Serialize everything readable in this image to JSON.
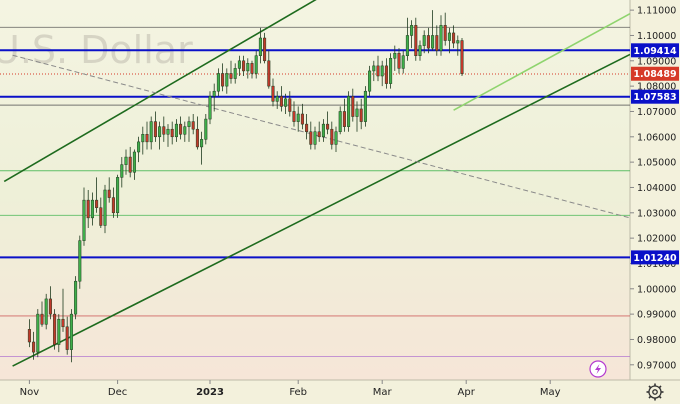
{
  "chart_data": {
    "type": "candlestick",
    "watermark": "U.S. Dollar",
    "y_axis": {
      "range": [
        0.964,
        1.114
      ],
      "ticks": [
        "1.11000",
        "1.10000",
        "1.09000",
        "1.08000",
        "1.07000",
        "1.06000",
        "1.05000",
        "1.04000",
        "1.03000",
        "1.02000",
        "1.01000",
        "1.00000",
        "0.99000",
        "0.98000",
        "0.97000"
      ]
    },
    "x_axis": {
      "labels": [
        {
          "text": "Nov",
          "x": 0
        },
        {
          "text": "Dec",
          "x": 21
        },
        {
          "text": "2023",
          "x": 43,
          "bold": true
        },
        {
          "text": "Feb",
          "x": 64
        },
        {
          "text": "Mar",
          "x": 84
        },
        {
          "text": "Apr",
          "x": 104
        },
        {
          "text": "May",
          "x": 124
        }
      ],
      "range": [
        -7,
        143
      ]
    },
    "price_labels": [
      {
        "text": "1.09414",
        "value": 1.09414,
        "color": "#0a10c8"
      },
      {
        "text": "1.08489",
        "value": 1.08489,
        "color": "#d63a28"
      },
      {
        "text": "1.07583",
        "value": 1.07583,
        "color": "#0a10c8"
      },
      {
        "text": "1.01240",
        "value": 1.0124,
        "color": "#0a10c8"
      }
    ],
    "horizontal_lines": [
      {
        "value": 1.09414,
        "color": "#0a10c8",
        "kind": "level"
      },
      {
        "value": 1.07583,
        "color": "#0a10c8",
        "kind": "level"
      },
      {
        "value": 1.0124,
        "color": "#0a10c8",
        "kind": "level"
      },
      {
        "value": 1.1032,
        "color": "#555555",
        "kind": "thin"
      },
      {
        "value": 1.0725,
        "color": "#555555",
        "kind": "thin"
      },
      {
        "value": 1.0466,
        "color": "#3bb24a",
        "kind": "thin"
      },
      {
        "value": 1.029,
        "color": "#3bb24a",
        "kind": "thin"
      },
      {
        "value": 0.9893,
        "color": "#c84646",
        "kind": "thin"
      },
      {
        "value": 0.9733,
        "color": "#b070d0",
        "kind": "thin"
      },
      {
        "value": 1.0848,
        "color": "#d63a28",
        "kind": "dotted"
      }
    ],
    "trend_lines": [
      {
        "name": "channel-upper",
        "x1": -6,
        "y1": 1.0424,
        "x2": 73,
        "y2": 1.1188,
        "color": "#1e6b1e"
      },
      {
        "name": "channel-lower",
        "x1": -4,
        "y1": 0.9695,
        "x2": 143,
        "y2": 1.0925,
        "color": "#1e6b1e"
      },
      {
        "name": "light-trend",
        "x1": 101,
        "y1": 1.0705,
        "x2": 143,
        "y2": 1.1086,
        "color": "#8fd46e"
      },
      {
        "name": "dashed-trend",
        "x1": -4,
        "y1": 1.0922,
        "x2": 143,
        "y2": 1.028,
        "color": "#8a8a8a",
        "dashed": true
      }
    ],
    "candles": [
      [
        0.984,
        0.988,
        0.977,
        0.979
      ],
      [
        0.979,
        0.983,
        0.972,
        0.975
      ],
      [
        0.975,
        0.992,
        0.973,
        0.99
      ],
      [
        0.99,
        0.995,
        0.985,
        0.986
      ],
      [
        0.986,
        0.998,
        0.984,
        0.996
      ],
      [
        0.996,
        1.001,
        0.988,
        0.99
      ],
      [
        0.99,
        0.992,
        0.976,
        0.978
      ],
      [
        0.978,
        0.99,
        0.975,
        0.988
      ],
      [
        0.988,
        1.0,
        0.983,
        0.985
      ],
      [
        0.985,
        0.989,
        0.974,
        0.976
      ],
      [
        0.976,
        0.992,
        0.971,
        0.99
      ],
      [
        0.99,
        1.005,
        0.988,
        1.003
      ],
      [
        1.003,
        1.021,
        1.0,
        1.019
      ],
      [
        1.019,
        1.04,
        1.017,
        1.035
      ],
      [
        1.035,
        1.039,
        1.024,
        1.028
      ],
      [
        1.028,
        1.038,
        1.025,
        1.035
      ],
      [
        1.035,
        1.044,
        1.03,
        1.032
      ],
      [
        1.032,
        1.036,
        1.024,
        1.025
      ],
      [
        1.025,
        1.041,
        1.022,
        1.039
      ],
      [
        1.039,
        1.044,
        1.034,
        1.036
      ],
      [
        1.036,
        1.04,
        1.028,
        1.03
      ],
      [
        1.03,
        1.045,
        1.028,
        1.044
      ],
      [
        1.044,
        1.052,
        1.04,
        1.049
      ],
      [
        1.049,
        1.055,
        1.045,
        1.052
      ],
      [
        1.052,
        1.056,
        1.044,
        1.046
      ],
      [
        1.046,
        1.055,
        1.043,
        1.054
      ],
      [
        1.054,
        1.06,
        1.05,
        1.058
      ],
      [
        1.058,
        1.064,
        1.053,
        1.061
      ],
      [
        1.061,
        1.066,
        1.055,
        1.058
      ],
      [
        1.058,
        1.068,
        1.055,
        1.066
      ],
      [
        1.066,
        1.07,
        1.058,
        1.06
      ],
      [
        1.06,
        1.066,
        1.055,
        1.064
      ],
      [
        1.064,
        1.068,
        1.058,
        1.061
      ],
      [
        1.061,
        1.065,
        1.056,
        1.063
      ],
      [
        1.063,
        1.066,
        1.057,
        1.06
      ],
      [
        1.06,
        1.067,
        1.058,
        1.065
      ],
      [
        1.065,
        1.068,
        1.059,
        1.061
      ],
      [
        1.061,
        1.066,
        1.058,
        1.064
      ],
      [
        1.064,
        1.068,
        1.058,
        1.066
      ],
      [
        1.066,
        1.069,
        1.061,
        1.063
      ],
      [
        1.063,
        1.068,
        1.055,
        1.056
      ],
      [
        1.056,
        1.062,
        1.049,
        1.059
      ],
      [
        1.059,
        1.069,
        1.057,
        1.067
      ],
      [
        1.067,
        1.078,
        1.065,
        1.076
      ],
      [
        1.076,
        1.081,
        1.07,
        1.078
      ],
      [
        1.078,
        1.087,
        1.076,
        1.085
      ],
      [
        1.085,
        1.089,
        1.078,
        1.08
      ],
      [
        1.08,
        1.087,
        1.077,
        1.085
      ],
      [
        1.085,
        1.09,
        1.081,
        1.083
      ],
      [
        1.083,
        1.089,
        1.081,
        1.087
      ],
      [
        1.087,
        1.092,
        1.084,
        1.09
      ],
      [
        1.09,
        1.092,
        1.084,
        1.086
      ],
      [
        1.086,
        1.091,
        1.083,
        1.089
      ],
      [
        1.089,
        1.09,
        1.083,
        1.085
      ],
      [
        1.085,
        1.094,
        1.083,
        1.092
      ],
      [
        1.092,
        1.103,
        1.089,
        1.099
      ],
      [
        1.099,
        1.101,
        1.089,
        1.09
      ],
      [
        1.09,
        1.094,
        1.079,
        1.08
      ],
      [
        1.08,
        1.083,
        1.072,
        1.074
      ],
      [
        1.074,
        1.078,
        1.071,
        1.076
      ],
      [
        1.076,
        1.08,
        1.07,
        1.072
      ],
      [
        1.072,
        1.077,
        1.069,
        1.075
      ],
      [
        1.075,
        1.078,
        1.068,
        1.07
      ],
      [
        1.07,
        1.074,
        1.064,
        1.066
      ],
      [
        1.066,
        1.072,
        1.062,
        1.069
      ],
      [
        1.069,
        1.073,
        1.063,
        1.065
      ],
      [
        1.065,
        1.069,
        1.059,
        1.062
      ],
      [
        1.062,
        1.066,
        1.055,
        1.057
      ],
      [
        1.057,
        1.064,
        1.055,
        1.062
      ],
      [
        1.062,
        1.066,
        1.058,
        1.06
      ],
      [
        1.06,
        1.067,
        1.058,
        1.065
      ],
      [
        1.065,
        1.07,
        1.061,
        1.063
      ],
      [
        1.063,
        1.066,
        1.055,
        1.057
      ],
      [
        1.057,
        1.064,
        1.054,
        1.062
      ],
      [
        1.062,
        1.072,
        1.061,
        1.07
      ],
      [
        1.07,
        1.075,
        1.062,
        1.064
      ],
      [
        1.064,
        1.078,
        1.062,
        1.076
      ],
      [
        1.076,
        1.079,
        1.066,
        1.068
      ],
      [
        1.068,
        1.074,
        1.062,
        1.071
      ],
      [
        1.071,
        1.075,
        1.063,
        1.066
      ],
      [
        1.066,
        1.08,
        1.064,
        1.078
      ],
      [
        1.078,
        1.088,
        1.076,
        1.086
      ],
      [
        1.086,
        1.09,
        1.082,
        1.088
      ],
      [
        1.088,
        1.092,
        1.082,
        1.084
      ],
      [
        1.084,
        1.09,
        1.08,
        1.088
      ],
      [
        1.088,
        1.091,
        1.079,
        1.081
      ],
      [
        1.081,
        1.093,
        1.079,
        1.091
      ],
      [
        1.091,
        1.096,
        1.086,
        1.093
      ],
      [
        1.093,
        1.095,
        1.085,
        1.087
      ],
      [
        1.087,
        1.094,
        1.085,
        1.092
      ],
      [
        1.092,
        1.107,
        1.09,
        1.1
      ],
      [
        1.1,
        1.106,
        1.095,
        1.104
      ],
      [
        1.104,
        1.107,
        1.09,
        1.092
      ],
      [
        1.092,
        1.098,
        1.09,
        1.096
      ],
      [
        1.096,
        1.102,
        1.093,
        1.1
      ],
      [
        1.1,
        1.103,
        1.093,
        1.095
      ],
      [
        1.095,
        1.11,
        1.094,
        1.1
      ],
      [
        1.1,
        1.104,
        1.092,
        1.094
      ],
      [
        1.094,
        1.108,
        1.092,
        1.104
      ],
      [
        1.104,
        1.109,
        1.096,
        1.098
      ],
      [
        1.098,
        1.103,
        1.093,
        1.101
      ],
      [
        1.101,
        1.104,
        1.095,
        1.097
      ],
      [
        1.097,
        1.1,
        1.092,
        1.098
      ],
      [
        1.098,
        1.099,
        1.084,
        1.0849
      ]
    ]
  }
}
